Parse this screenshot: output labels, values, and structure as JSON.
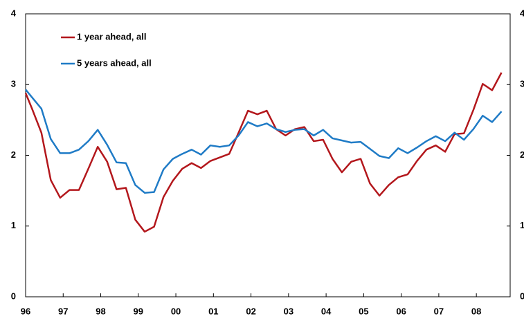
{
  "chart_data": {
    "type": "line",
    "x": [
      1996,
      1996.17,
      1996.42,
      1996.67,
      1996.92,
      1997.17,
      1997.42,
      1997.67,
      1997.92,
      1998.17,
      1998.42,
      1998.67,
      1998.92,
      1999.17,
      1999.42,
      1999.67,
      1999.92,
      2000.17,
      2000.42,
      2000.67,
      2000.92,
      2001.17,
      2001.42,
      2001.67,
      2001.92,
      2002.17,
      2002.42,
      2002.67,
      2002.92,
      2003.17,
      2003.42,
      2003.67,
      2003.92,
      2004.17,
      2004.42,
      2004.67,
      2004.92,
      2005.17,
      2005.42,
      2005.67,
      2005.92,
      2006.17,
      2006.42,
      2006.67,
      2006.92,
      2007.17,
      2007.42,
      2007.67,
      2007.92,
      2008.17,
      2008.42,
      2008.67
    ],
    "series": [
      {
        "name": "1 year ahead, all",
        "color": "#b3171c",
        "values": [
          2.88,
          2.66,
          2.32,
          1.65,
          1.4,
          1.51,
          1.51,
          1.81,
          2.12,
          1.91,
          1.52,
          1.54,
          1.09,
          0.92,
          0.99,
          1.41,
          1.64,
          1.81,
          1.89,
          1.82,
          1.92,
          1.97,
          2.02,
          2.32,
          2.63,
          2.58,
          2.63,
          2.37,
          2.28,
          2.37,
          2.4,
          2.2,
          2.22,
          1.95,
          1.76,
          1.91,
          1.95,
          1.6,
          1.43,
          1.58,
          1.69,
          1.73,
          1.92,
          2.08,
          2.14,
          2.05,
          2.3,
          2.31,
          2.64,
          3.01,
          2.92,
          3.17
        ]
      },
      {
        "name": "5 years ahead, all",
        "color": "#1f7bc6",
        "values": [
          2.93,
          2.82,
          2.66,
          2.23,
          2.03,
          2.03,
          2.08,
          2.2,
          2.36,
          2.15,
          1.9,
          1.89,
          1.58,
          1.47,
          1.48,
          1.8,
          1.95,
          2.02,
          2.08,
          2.01,
          2.14,
          2.12,
          2.14,
          2.28,
          2.47,
          2.41,
          2.45,
          2.37,
          2.33,
          2.36,
          2.37,
          2.28,
          2.36,
          2.24,
          2.21,
          2.18,
          2.19,
          2.09,
          1.99,
          1.96,
          2.1,
          2.03,
          2.11,
          2.2,
          2.27,
          2.2,
          2.32,
          2.22,
          2.37,
          2.56,
          2.47,
          2.62
        ]
      }
    ],
    "xlim": [
      1996,
      2008.9
    ],
    "xticks": [
      {
        "value": 1996,
        "label": "96"
      },
      {
        "value": 1997,
        "label": "97"
      },
      {
        "value": 1998,
        "label": "98"
      },
      {
        "value": 1999,
        "label": "99"
      },
      {
        "value": 2000,
        "label": "00"
      },
      {
        "value": 2001,
        "label": "01"
      },
      {
        "value": 2002,
        "label": "02"
      },
      {
        "value": 2003,
        "label": "03"
      },
      {
        "value": 2004,
        "label": "04"
      },
      {
        "value": 2005,
        "label": "05"
      },
      {
        "value": 2006,
        "label": "06"
      },
      {
        "value": 2007,
        "label": "07"
      },
      {
        "value": 2008,
        "label": "08"
      }
    ],
    "ylim": [
      0,
      4
    ],
    "yticks": [
      0,
      1,
      2,
      3,
      4
    ],
    "y2lim": [
      0,
      4
    ],
    "y2ticks": [
      0,
      1,
      2,
      3,
      4
    ],
    "grid": false,
    "legend": "upper left"
  }
}
